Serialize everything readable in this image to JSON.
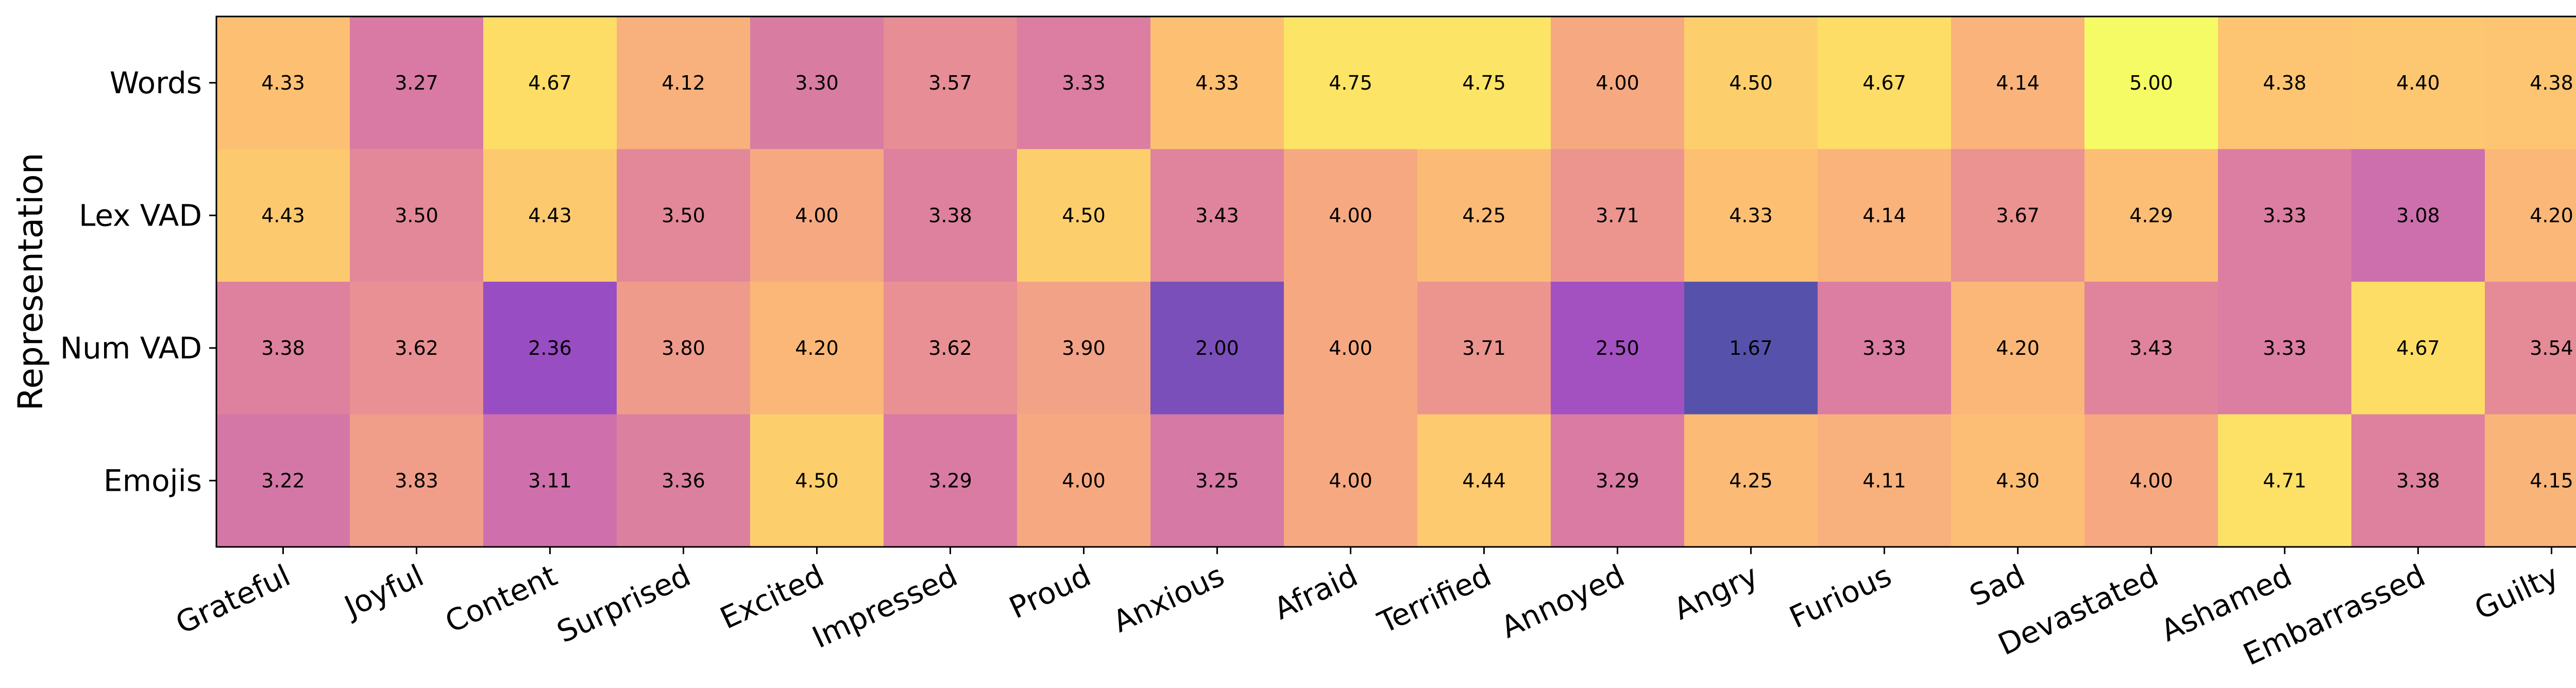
{
  "chart_data": {
    "type": "heatmap",
    "title": "",
    "xlabel": "",
    "ylabel": "Representation",
    "rows": [
      "Words",
      "Lex VAD",
      "Num VAD",
      "Emojis"
    ],
    "columns": [
      "Grateful",
      "Joyful",
      "Content",
      "Surprised",
      "Excited",
      "Impressed",
      "Proud",
      "Anxious",
      "Afraid",
      "Terrified",
      "Annoyed",
      "Angry",
      "Furious",
      "Sad",
      "Devastated",
      "Ashamed",
      "Embarrassed",
      "Guilty"
    ],
    "values": [
      [
        4.33,
        3.27,
        4.67,
        4.12,
        3.3,
        3.57,
        3.33,
        4.33,
        4.75,
        4.75,
        4.0,
        4.5,
        4.67,
        4.14,
        5.0,
        4.38,
        4.4,
        4.38
      ],
      [
        4.43,
        3.5,
        4.43,
        3.5,
        4.0,
        3.38,
        4.5,
        3.43,
        4.0,
        4.25,
        3.71,
        4.33,
        4.14,
        3.67,
        4.29,
        3.33,
        3.08,
        4.2
      ],
      [
        3.38,
        3.62,
        2.36,
        3.8,
        4.2,
        3.62,
        3.9,
        2.0,
        4.0,
        3.71,
        2.5,
        1.67,
        3.33,
        4.2,
        3.43,
        3.33,
        4.67,
        3.54
      ],
      [
        3.22,
        3.83,
        3.11,
        3.36,
        4.5,
        3.29,
        4.0,
        3.25,
        4.0,
        4.44,
        3.29,
        4.25,
        4.11,
        4.3,
        4.0,
        4.71,
        3.38,
        4.15
      ]
    ],
    "value_labels": [
      [
        "4.33",
        "3.27",
        "4.67",
        "4.12",
        "3.30",
        "3.57",
        "3.33",
        "4.33",
        "4.75",
        "4.75",
        "4.00",
        "4.50",
        "4.67",
        "4.14",
        "5.00",
        "4.38",
        "4.40",
        "4.38"
      ],
      [
        "4.43",
        "3.50",
        "4.43",
        "3.50",
        "4.00",
        "3.38",
        "4.50",
        "3.43",
        "4.00",
        "4.25",
        "3.71",
        "4.33",
        "4.14",
        "3.67",
        "4.29",
        "3.33",
        "3.08",
        "4.20"
      ],
      [
        "3.38",
        "3.62",
        "2.36",
        "3.80",
        "4.20",
        "3.62",
        "3.90",
        "2.00",
        "4.00",
        "3.71",
        "2.50",
        "1.67",
        "3.33",
        "4.20",
        "3.43",
        "3.33",
        "4.67",
        "3.54"
      ],
      [
        "3.22",
        "3.83",
        "3.11",
        "3.36",
        "4.50",
        "3.29",
        "4.00",
        "3.25",
        "4.00",
        "4.44",
        "3.29",
        "4.25",
        "4.11",
        "4.30",
        "4.00",
        "4.71",
        "3.38",
        "4.15"
      ]
    ],
    "colormap": "plasma",
    "color_alpha": 0.7,
    "value_range": [
      1.67,
      5.0
    ],
    "grid": false,
    "legend": "none"
  }
}
